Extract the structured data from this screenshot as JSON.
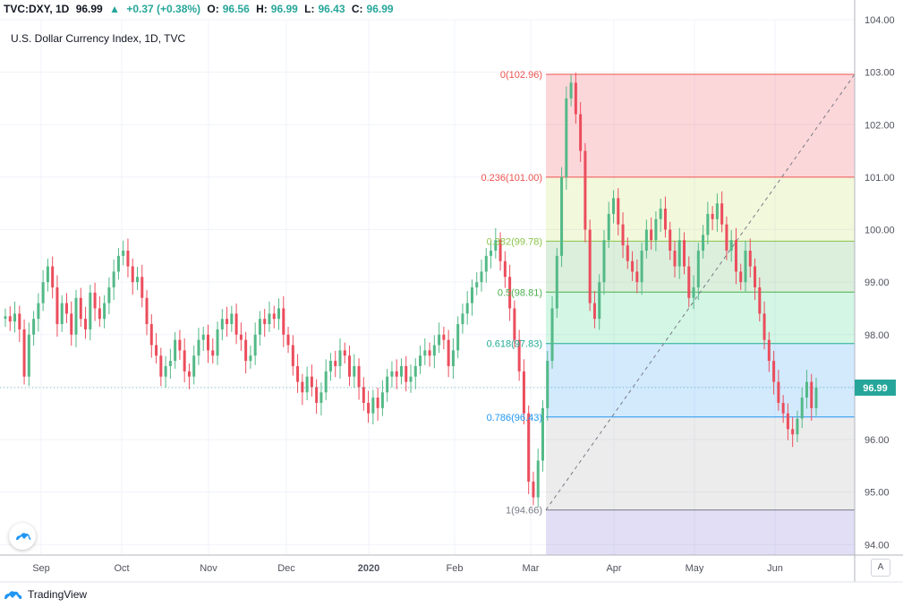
{
  "header": {
    "symbol": "TVC:DXY, 1D",
    "last": "96.99",
    "arrow": "▲",
    "change": "+0.37 (+0.38%)",
    "o_label": "O:",
    "o_value": "96.56",
    "h_label": "H:",
    "h_value": "96.99",
    "l_label": "L:",
    "l_value": "96.43",
    "c_label": "C:",
    "c_value": "96.99"
  },
  "chart_title": "U.S. Dollar Currency Index, 1D, TVC",
  "current_price_label": "96.99",
  "auto_label": "A",
  "footer": {
    "brand": "TradingView"
  },
  "colors": {
    "up": "#26a69a",
    "down": "#ef5350",
    "candle_up": "#53b987",
    "candle_down": "#eb4d5c",
    "price_tag": "#26a69a"
  },
  "chart_data": {
    "type": "candlestick",
    "title": "U.S. Dollar Currency Index, 1D, TVC",
    "y_ticks": [
      94,
      95,
      96,
      97,
      98,
      99,
      100,
      101,
      102,
      103,
      104
    ],
    "y_tick_labels": [
      "94.00",
      "95.00",
      "96.00",
      "97.00",
      "98.00",
      "99.00",
      "100.00",
      "101.00",
      "102.00",
      "103.00",
      "104.00"
    ],
    "ylim": [
      93.8,
      104.0
    ],
    "x_labels": [
      "Sep",
      "Oct",
      "Nov",
      "Dec",
      "2020",
      "Feb",
      "Mar",
      "Apr",
      "May",
      "Jun"
    ],
    "x_label_bold": [
      false,
      false,
      false,
      false,
      true,
      false,
      false,
      false,
      false,
      false
    ],
    "fibonacci": {
      "levels": [
        {
          "label": "0(102.96)",
          "price": 102.96,
          "color": "#ef5350"
        },
        {
          "label": "0.236(101.00)",
          "price": 101.0,
          "color": "#ef5350"
        },
        {
          "label": "0.382(99.78)",
          "price": 99.78,
          "color": "#8bc34a"
        },
        {
          "label": "0.5(98.81)",
          "price": 98.81,
          "color": "#4caf50"
        },
        {
          "label": "0.618(97.83)",
          "price": 97.83,
          "color": "#22ab94"
        },
        {
          "label": "0.786(96.43)",
          "price": 96.43,
          "color": "#2196f3"
        },
        {
          "label": "1(94.66)",
          "price": 94.66,
          "color": "#787b86"
        }
      ],
      "bands": [
        {
          "from": 102.96,
          "to": 101.0,
          "color": "#f23645"
        },
        {
          "from": 101.0,
          "to": 99.78,
          "color": "#c0dc50"
        },
        {
          "from": 99.78,
          "to": 98.81,
          "color": "#4caf50"
        },
        {
          "from": 98.81,
          "to": 97.83,
          "color": "#26d07c"
        },
        {
          "from": 97.83,
          "to": 96.43,
          "color": "#2196f3"
        },
        {
          "from": 96.43,
          "to": 94.66,
          "color": "#a0a0a0"
        },
        {
          "from": 94.66,
          "to": 93.8,
          "color": "#6a5acd"
        }
      ],
      "trend_from": 94.66,
      "trend_to": 102.96
    },
    "closes": [
      98.35,
      98.25,
      98.4,
      98.1,
      97.2,
      98.0,
      98.3,
      98.6,
      99.0,
      99.3,
      98.9,
      98.2,
      98.6,
      98.4,
      98.0,
      98.7,
      98.3,
      98.1,
      98.8,
      98.5,
      98.3,
      98.6,
      98.9,
      99.2,
      99.5,
      99.6,
      99.3,
      99.0,
      99.1,
      98.7,
      98.2,
      97.8,
      97.6,
      97.2,
      97.4,
      97.5,
      97.9,
      97.7,
      97.3,
      97.2,
      97.6,
      97.9,
      98.0,
      97.7,
      97.6,
      98.1,
      98.3,
      98.2,
      98.4,
      98.0,
      97.9,
      97.5,
      97.6,
      98.0,
      98.3,
      98.2,
      98.4,
      98.3,
      98.5,
      98.0,
      97.8,
      97.4,
      97.1,
      96.9,
      97.2,
      97.0,
      96.7,
      96.9,
      97.3,
      97.5,
      97.4,
      97.7,
      97.6,
      97.2,
      97.4,
      97.0,
      96.7,
      96.5,
      96.8,
      96.6,
      96.9,
      97.2,
      97.3,
      97.2,
      97.4,
      97.1,
      97.2,
      97.4,
      97.6,
      97.7,
      97.6,
      97.8,
      98.0,
      97.9,
      97.4,
      97.7,
      98.2,
      98.4,
      98.6,
      98.9,
      99.0,
      99.2,
      99.5,
      99.6,
      99.8,
      99.4,
      99.1,
      98.5,
      97.9,
      97.3,
      96.5,
      95.2,
      94.9,
      95.6,
      96.6,
      97.5,
      98.5,
      99.5,
      101.0,
      102.5,
      102.8,
      102.2,
      101.5,
      100.0,
      98.6,
      98.3,
      99.0,
      99.8,
      100.3,
      100.6,
      100.1,
      99.7,
      99.4,
      99.2,
      99.0,
      99.6,
      100.0,
      99.8,
      100.2,
      100.4,
      100.0,
      99.6,
      99.3,
      99.8,
      99.3,
      98.7,
      98.9,
      99.6,
      99.9,
      100.3,
      100.2,
      100.5,
      100.1,
      99.6,
      99.8,
      99.2,
      99.0,
      99.6,
      99.3,
      98.9,
      98.4,
      97.9,
      97.5,
      97.1,
      96.7,
      96.5,
      96.2,
      96.1,
      96.4,
      96.8,
      97.1,
      96.6,
      96.99
    ]
  }
}
